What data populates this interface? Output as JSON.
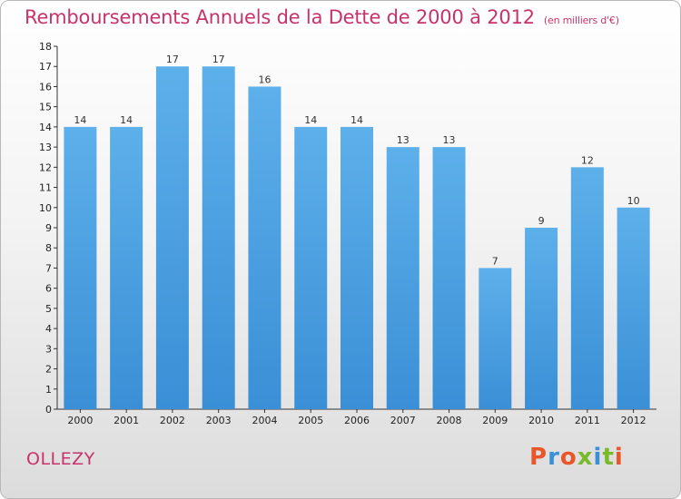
{
  "header": {
    "title": "Remboursements Annuels de la Dette de 2000 à 2012",
    "subtitle": "(en milliers d'€)"
  },
  "footer": {
    "commune": "OLLEZY",
    "logo_text": "Proxiti"
  },
  "colors": {
    "bar": "#3a8fd6",
    "bar_light": "#5db0ea",
    "title": "#c8336b",
    "logo": [
      "#e8562a",
      "#3a8fd6",
      "#e8562a",
      "#7ab929",
      "#3a8fd6",
      "#7ab929",
      "#e8562a"
    ]
  },
  "chart_data": {
    "type": "bar",
    "title": "Remboursements Annuels de la Dette de 2000 à 2012",
    "subtitle": "(en milliers d'€)",
    "xlabel": "",
    "ylabel": "",
    "categories": [
      "2000",
      "2001",
      "2002",
      "2003",
      "2004",
      "2005",
      "2006",
      "2007",
      "2008",
      "2009",
      "2010",
      "2011",
      "2012"
    ],
    "values": [
      14,
      14,
      17,
      17,
      16,
      14,
      14,
      13,
      13,
      7,
      9,
      12,
      10
    ],
    "ylim": [
      0,
      18
    ],
    "yticks": [
      "0",
      "1",
      "2",
      "3",
      "4",
      "5",
      "6",
      "7",
      "8",
      "9",
      "10",
      "11",
      "12",
      "13",
      "14",
      "15",
      "16",
      "17",
      "18"
    ],
    "grid": false,
    "legend": "none"
  }
}
